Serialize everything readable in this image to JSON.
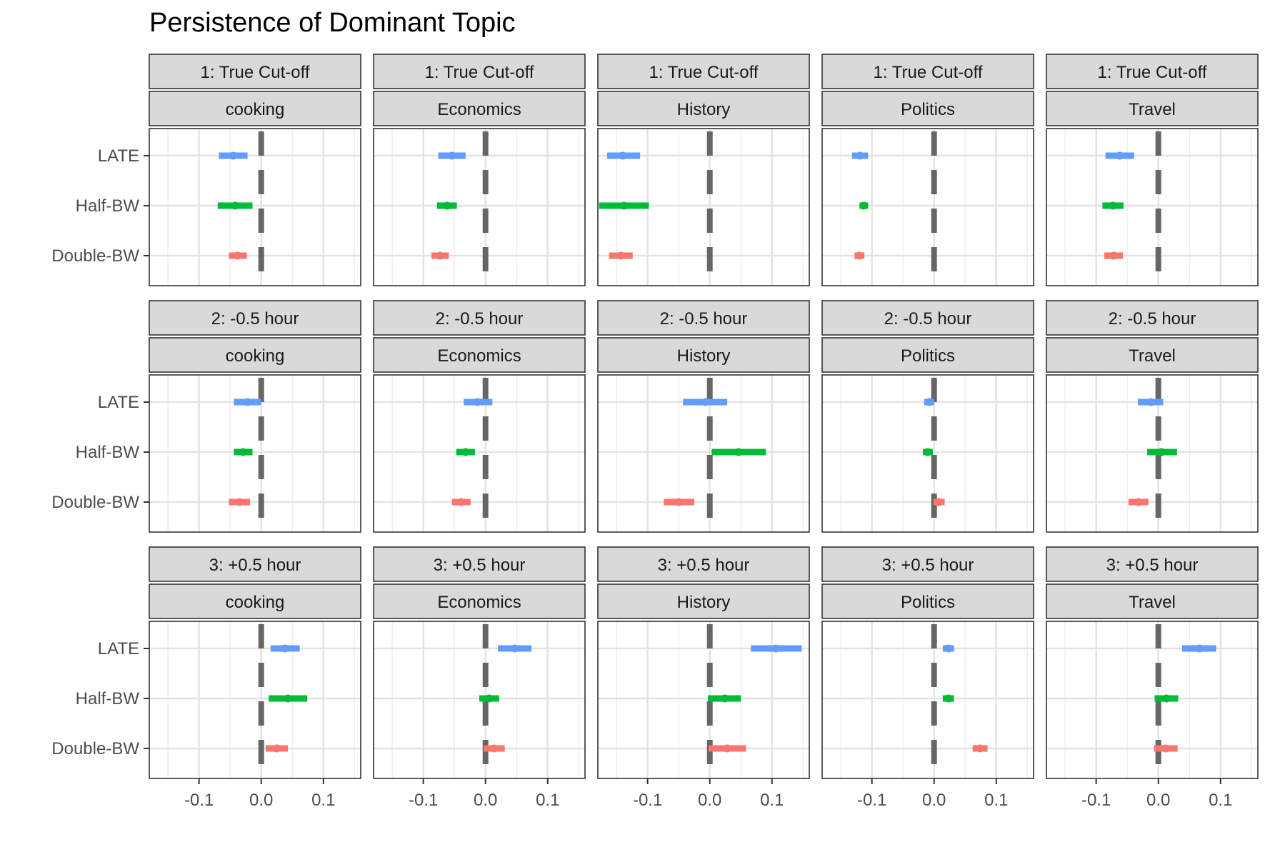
{
  "chart_data": {
    "type": "scatter",
    "title": "Persistence of Dominant Topic",
    "xlabel": "",
    "ylabel": "",
    "xlim": [
      -0.18,
      0.16
    ],
    "x_ticks": [
      -0.1,
      0.0,
      0.1
    ],
    "x_tick_labels": [
      "-0.1",
      "0.0",
      "0.1"
    ],
    "y_categories": [
      "LATE",
      "Half-BW",
      "Double-BW"
    ],
    "reference_line_x": 0,
    "grid": true,
    "legend": "none",
    "series_colors": {
      "LATE": "#619CFF",
      "Half-BW": "#00BA38",
      "Double-BW": "#F8766D"
    },
    "reference_line_color": "#666666",
    "row_labels": [
      "1: True Cut-off",
      "2: -0.5 hour",
      "3: +0.5 hour"
    ],
    "col_labels": [
      "cooking",
      "Economics",
      "History",
      "Politics",
      "Travel"
    ],
    "panels": [
      {
        "row": "1: True Cut-off",
        "col": "cooking",
        "points": [
          {
            "y": "LATE",
            "est": -0.045,
            "lo": -0.068,
            "hi": -0.022
          },
          {
            "y": "Half-BW",
            "est": -0.042,
            "lo": -0.07,
            "hi": -0.014
          },
          {
            "y": "Double-BW",
            "est": -0.038,
            "lo": -0.052,
            "hi": -0.023
          }
        ]
      },
      {
        "row": "1: True Cut-off",
        "col": "Economics",
        "points": [
          {
            "y": "LATE",
            "est": -0.054,
            "lo": -0.076,
            "hi": -0.032
          },
          {
            "y": "Half-BW",
            "est": -0.062,
            "lo": -0.078,
            "hi": -0.046
          },
          {
            "y": "Double-BW",
            "est": -0.073,
            "lo": -0.087,
            "hi": -0.059
          }
        ]
      },
      {
        "row": "1: True Cut-off",
        "col": "History",
        "points": [
          {
            "y": "LATE",
            "est": -0.14,
            "lo": -0.165,
            "hi": -0.112
          },
          {
            "y": "Half-BW",
            "est": -0.138,
            "lo": -0.178,
            "hi": -0.098
          },
          {
            "y": "Double-BW",
            "est": -0.143,
            "lo": -0.162,
            "hi": -0.124
          }
        ]
      },
      {
        "row": "1: True Cut-off",
        "col": "Politics",
        "points": [
          {
            "y": "LATE",
            "est": -0.119,
            "lo": -0.132,
            "hi": -0.106
          },
          {
            "y": "Half-BW",
            "est": -0.113,
            "lo": -0.12,
            "hi": -0.106
          },
          {
            "y": "Double-BW",
            "est": -0.12,
            "lo": -0.128,
            "hi": -0.112
          }
        ]
      },
      {
        "row": "1: True Cut-off",
        "col": "Travel",
        "points": [
          {
            "y": "LATE",
            "est": -0.062,
            "lo": -0.085,
            "hi": -0.039
          },
          {
            "y": "Half-BW",
            "est": -0.073,
            "lo": -0.09,
            "hi": -0.056
          },
          {
            "y": "Double-BW",
            "est": -0.072,
            "lo": -0.087,
            "hi": -0.057
          }
        ]
      },
      {
        "row": "2: -0.5 hour",
        "col": "cooking",
        "points": [
          {
            "y": "LATE",
            "est": -0.022,
            "lo": -0.044,
            "hi": 0.0
          },
          {
            "y": "Half-BW",
            "est": -0.029,
            "lo": -0.044,
            "hi": -0.014
          },
          {
            "y": "Double-BW",
            "est": -0.035,
            "lo": -0.052,
            "hi": -0.018
          }
        ]
      },
      {
        "row": "2: -0.5 hour",
        "col": "Economics",
        "points": [
          {
            "y": "LATE",
            "est": -0.013,
            "lo": -0.035,
            "hi": 0.011
          },
          {
            "y": "Half-BW",
            "est": -0.032,
            "lo": -0.047,
            "hi": -0.017
          },
          {
            "y": "Double-BW",
            "est": -0.039,
            "lo": -0.054,
            "hi": -0.024
          }
        ]
      },
      {
        "row": "2: -0.5 hour",
        "col": "History",
        "points": [
          {
            "y": "LATE",
            "est": -0.007,
            "lo": -0.043,
            "hi": 0.028
          },
          {
            "y": "Half-BW",
            "est": 0.046,
            "lo": 0.003,
            "hi": 0.09
          },
          {
            "y": "Double-BW",
            "est": -0.05,
            "lo": -0.074,
            "hi": -0.025
          }
        ]
      },
      {
        "row": "2: -0.5 hour",
        "col": "Politics",
        "points": [
          {
            "y": "LATE",
            "est": -0.008,
            "lo": -0.016,
            "hi": 0.0
          },
          {
            "y": "Half-BW",
            "est": -0.01,
            "lo": -0.018,
            "hi": -0.002
          },
          {
            "y": "Double-BW",
            "est": 0.008,
            "lo": -0.001,
            "hi": 0.017
          }
        ]
      },
      {
        "row": "2: -0.5 hour",
        "col": "Travel",
        "points": [
          {
            "y": "LATE",
            "est": -0.012,
            "lo": -0.033,
            "hi": 0.008
          },
          {
            "y": "Half-BW",
            "est": 0.005,
            "lo": -0.018,
            "hi": 0.03
          },
          {
            "y": "Double-BW",
            "est": -0.032,
            "lo": -0.048,
            "hi": -0.016
          }
        ]
      },
      {
        "row": "3: +0.5 hour",
        "col": "cooking",
        "points": [
          {
            "y": "LATE",
            "est": 0.038,
            "lo": 0.015,
            "hi": 0.062
          },
          {
            "y": "Half-BW",
            "est": 0.043,
            "lo": 0.012,
            "hi": 0.074
          },
          {
            "y": "Double-BW",
            "est": 0.025,
            "lo": 0.007,
            "hi": 0.043
          }
        ]
      },
      {
        "row": "3: +0.5 hour",
        "col": "Economics",
        "points": [
          {
            "y": "LATE",
            "est": 0.047,
            "lo": 0.02,
            "hi": 0.074
          },
          {
            "y": "Half-BW",
            "est": 0.006,
            "lo": -0.01,
            "hi": 0.022
          },
          {
            "y": "Double-BW",
            "est": 0.014,
            "lo": -0.003,
            "hi": 0.031
          }
        ]
      },
      {
        "row": "3: +0.5 hour",
        "col": "History",
        "points": [
          {
            "y": "LATE",
            "est": 0.106,
            "lo": 0.066,
            "hi": 0.148
          },
          {
            "y": "Half-BW",
            "est": 0.024,
            "lo": -0.003,
            "hi": 0.05
          },
          {
            "y": "Double-BW",
            "est": 0.028,
            "lo": -0.002,
            "hi": 0.058
          }
        ]
      },
      {
        "row": "3: +0.5 hour",
        "col": "Politics",
        "points": [
          {
            "y": "LATE",
            "est": 0.023,
            "lo": 0.014,
            "hi": 0.032
          },
          {
            "y": "Half-BW",
            "est": 0.023,
            "lo": 0.014,
            "hi": 0.032
          },
          {
            "y": "Double-BW",
            "est": 0.074,
            "lo": 0.062,
            "hi": 0.086
          }
        ]
      },
      {
        "row": "3: +0.5 hour",
        "col": "Travel",
        "points": [
          {
            "y": "LATE",
            "est": 0.066,
            "lo": 0.038,
            "hi": 0.093
          },
          {
            "y": "Half-BW",
            "est": 0.013,
            "lo": -0.006,
            "hi": 0.032
          },
          {
            "y": "Double-BW",
            "est": 0.012,
            "lo": -0.007,
            "hi": 0.031
          }
        ]
      }
    ]
  }
}
